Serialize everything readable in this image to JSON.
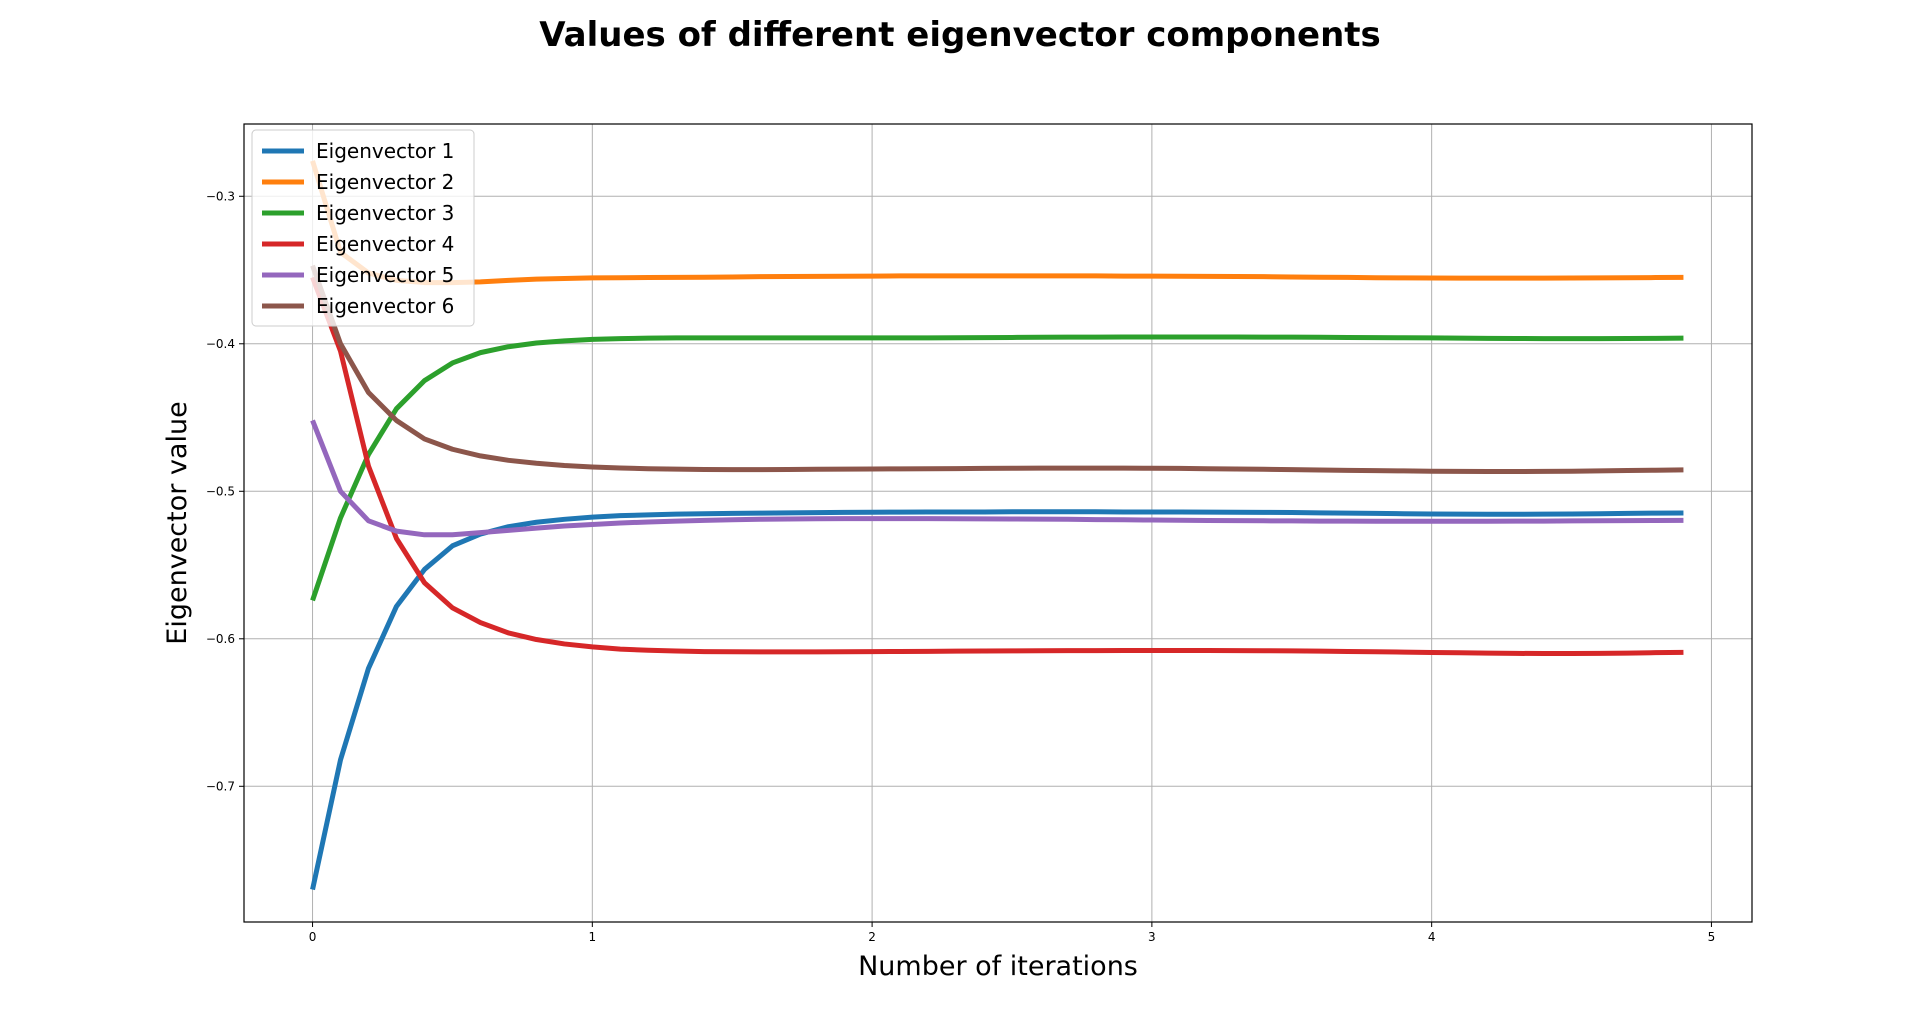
{
  "chart_data": {
    "type": "line",
    "title": "Values of different eigenvector components",
    "xlabel": "Number of iterations",
    "ylabel": "Eigenvector value",
    "xlim": [
      -0.245,
      5.145
    ],
    "ylim": [
      -0.792,
      -0.251
    ],
    "xticks": [
      0,
      1,
      2,
      3,
      4,
      5
    ],
    "xtick_labels": [
      "0",
      "1",
      "2",
      "3",
      "4",
      "5"
    ],
    "yticks": [
      -0.7,
      -0.6,
      -0.5,
      -0.4,
      -0.3
    ],
    "ytick_labels": [
      "−0.7",
      "−0.6",
      "−0.5",
      "−0.4",
      "−0.3"
    ],
    "grid": true,
    "legend_position": "upper-left",
    "x": [
      0.0,
      0.1,
      0.2,
      0.3,
      0.4,
      0.5,
      0.6,
      0.7,
      0.8,
      0.9,
      1.0,
      1.1,
      1.2,
      1.3,
      1.4,
      1.5,
      1.6,
      1.7,
      1.8,
      1.9,
      2.0,
      2.1,
      2.2,
      2.3,
      2.4,
      2.5,
      2.6,
      2.7,
      2.8,
      2.9,
      3.0,
      3.1,
      3.2,
      3.3,
      3.4,
      3.5,
      3.6,
      3.7,
      3.8,
      3.9,
      4.0,
      4.1,
      4.2,
      4.3,
      4.4,
      4.5,
      4.6,
      4.7,
      4.8,
      4.9
    ],
    "series": [
      {
        "name": "Eigenvector 1",
        "color": "#1f77b4",
        "values": [
          -0.77,
          -0.682,
          -0.62,
          -0.578,
          -0.553,
          -0.537,
          -0.529,
          -0.524,
          -0.521,
          -0.519,
          -0.5175,
          -0.5165,
          -0.516,
          -0.5155,
          -0.5152,
          -0.515,
          -0.5148,
          -0.5146,
          -0.5145,
          -0.5143,
          -0.5142,
          -0.5141,
          -0.514,
          -0.514,
          -0.514,
          -0.5139,
          -0.5139,
          -0.5139,
          -0.5139,
          -0.514,
          -0.514,
          -0.514,
          -0.5141,
          -0.5142,
          -0.5143,
          -0.5144,
          -0.5146,
          -0.5148,
          -0.515,
          -0.5152,
          -0.5154,
          -0.5155,
          -0.5156,
          -0.5156,
          -0.5155,
          -0.5154,
          -0.5152,
          -0.515,
          -0.5148,
          -0.5147
        ]
      },
      {
        "name": "Eigenvector 2",
        "color": "#ff7f0e",
        "values": [
          -0.276,
          -0.338,
          -0.352,
          -0.357,
          -0.3585,
          -0.3585,
          -0.358,
          -0.357,
          -0.3562,
          -0.3557,
          -0.3553,
          -0.3552,
          -0.3551,
          -0.355,
          -0.3549,
          -0.3547,
          -0.3545,
          -0.3544,
          -0.3543,
          -0.3542,
          -0.3541,
          -0.354,
          -0.354,
          -0.354,
          -0.354,
          -0.354,
          -0.354,
          -0.354,
          -0.354,
          -0.3541,
          -0.3541,
          -0.3542,
          -0.3543,
          -0.3544,
          -0.3545,
          -0.3547,
          -0.3549,
          -0.355,
          -0.3552,
          -0.3553,
          -0.3554,
          -0.3555,
          -0.3555,
          -0.3555,
          -0.3555,
          -0.3554,
          -0.3553,
          -0.3552,
          -0.3551,
          -0.355
        ]
      },
      {
        "name": "Eigenvector 3",
        "color": "#2ca02c",
        "values": [
          -0.574,
          -0.518,
          -0.475,
          -0.444,
          -0.425,
          -0.413,
          -0.406,
          -0.402,
          -0.3995,
          -0.398,
          -0.397,
          -0.3965,
          -0.3962,
          -0.396,
          -0.396,
          -0.396,
          -0.396,
          -0.396,
          -0.396,
          -0.396,
          -0.396,
          -0.396,
          -0.396,
          -0.3959,
          -0.3958,
          -0.3957,
          -0.3956,
          -0.3955,
          -0.3955,
          -0.3954,
          -0.3954,
          -0.3954,
          -0.3954,
          -0.3954,
          -0.3955,
          -0.3955,
          -0.3956,
          -0.3957,
          -0.3958,
          -0.3959,
          -0.396,
          -0.3962,
          -0.3963,
          -0.3964,
          -0.3965,
          -0.3965,
          -0.3965,
          -0.3964,
          -0.3963,
          -0.3962
        ]
      },
      {
        "name": "Eigenvector 4",
        "color": "#d62728",
        "values": [
          -0.355,
          -0.405,
          -0.483,
          -0.532,
          -0.562,
          -0.579,
          -0.589,
          -0.596,
          -0.6005,
          -0.6035,
          -0.6055,
          -0.607,
          -0.6078,
          -0.6083,
          -0.6087,
          -0.6088,
          -0.6089,
          -0.6089,
          -0.6089,
          -0.6088,
          -0.6087,
          -0.6086,
          -0.6085,
          -0.6084,
          -0.6083,
          -0.6082,
          -0.6081,
          -0.608,
          -0.608,
          -0.6079,
          -0.6079,
          -0.6079,
          -0.6079,
          -0.608,
          -0.6081,
          -0.6082,
          -0.6084,
          -0.6086,
          -0.6088,
          -0.609,
          -0.6093,
          -0.6095,
          -0.6097,
          -0.6099,
          -0.61,
          -0.61,
          -0.6099,
          -0.6097,
          -0.6094,
          -0.6092
        ]
      },
      {
        "name": "Eigenvector 5",
        "color": "#9467bd",
        "values": [
          -0.452,
          -0.5,
          -0.52,
          -0.527,
          -0.5295,
          -0.5295,
          -0.528,
          -0.5265,
          -0.525,
          -0.5235,
          -0.5225,
          -0.5215,
          -0.5208,
          -0.5202,
          -0.5197,
          -0.5193,
          -0.519,
          -0.5188,
          -0.5186,
          -0.5185,
          -0.5185,
          -0.5185,
          -0.5185,
          -0.5186,
          -0.5187,
          -0.5188,
          -0.5189,
          -0.519,
          -0.5192,
          -0.5193,
          -0.5195,
          -0.5196,
          -0.5198,
          -0.5199,
          -0.52,
          -0.5201,
          -0.5202,
          -0.5202,
          -0.5203,
          -0.5203,
          -0.5203,
          -0.5203,
          -0.5203,
          -0.5202,
          -0.5202,
          -0.5201,
          -0.52,
          -0.5199,
          -0.5198,
          -0.5197
        ]
      },
      {
        "name": "Eigenvector 6",
        "color": "#8c564b",
        "values": [
          -0.347,
          -0.4,
          -0.433,
          -0.452,
          -0.4645,
          -0.4715,
          -0.476,
          -0.479,
          -0.481,
          -0.4825,
          -0.4835,
          -0.4842,
          -0.4847,
          -0.485,
          -0.4852,
          -0.4853,
          -0.4853,
          -0.4852,
          -0.4851,
          -0.485,
          -0.4849,
          -0.4848,
          -0.4847,
          -0.4846,
          -0.4845,
          -0.4844,
          -0.4843,
          -0.4843,
          -0.4843,
          -0.4843,
          -0.4844,
          -0.4845,
          -0.4847,
          -0.4849,
          -0.4851,
          -0.4853,
          -0.4856,
          -0.4858,
          -0.486,
          -0.4862,
          -0.4864,
          -0.4865,
          -0.4866,
          -0.4866,
          -0.4865,
          -0.4864,
          -0.4862,
          -0.4859,
          -0.4857,
          -0.4855
        ]
      }
    ]
  }
}
